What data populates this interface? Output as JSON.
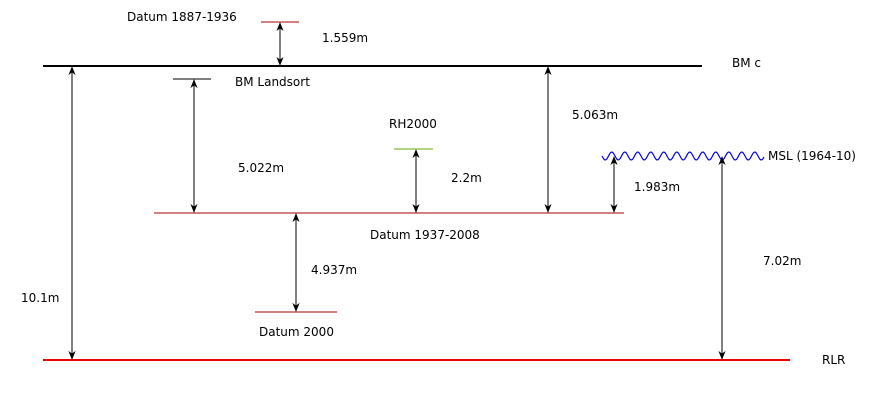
{
  "labels": {
    "datum_1887_1936": "Datum 1887-1936",
    "bm_c": "BM c",
    "bm_landsort": "BM Landsort",
    "rh2000": "RH2000",
    "msl": "MSL (1964-10)",
    "datum_1937_2008": "Datum 1937-2008",
    "datum_2000": "Datum 2000",
    "rlr": "RLR"
  },
  "measurements": {
    "m1": "1.559m",
    "m2": "5.022m",
    "m3": "5.063m",
    "m4": "2.2m",
    "m5": "1.983m",
    "m6": "4.937m",
    "m7": "7.02m",
    "m8": "10.1m"
  },
  "colors": {
    "bm_c_line": "#000000",
    "bm_landsort_line": "#000000",
    "datum_red": "#aa0000",
    "rlr_line": "#ee0000",
    "rh2000_line": "#66aa00",
    "msl_wave": "#0000dd",
    "arrow": "#000000"
  }
}
